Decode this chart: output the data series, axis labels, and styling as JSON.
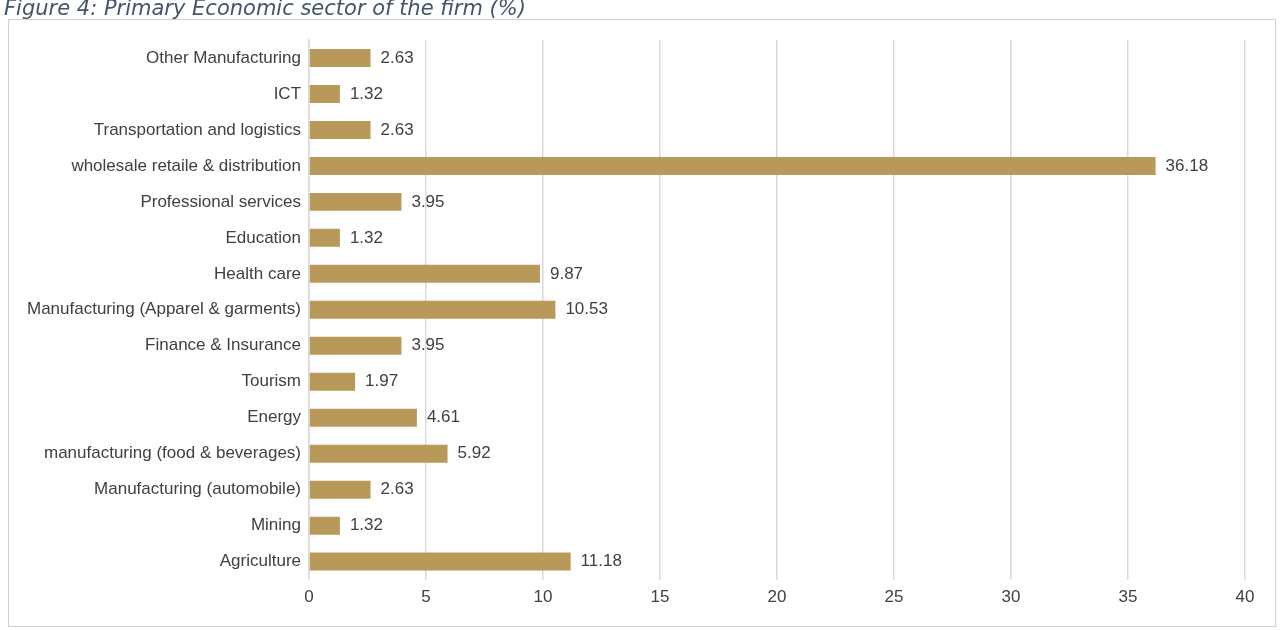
{
  "chart_data": {
    "type": "bar",
    "orientation": "horizontal",
    "title": "Figure 4: Primary Economic sector of the firm (%)",
    "categories": [
      "Other Manufacturing",
      "ICT",
      "Transportation and logistics",
      "wholesale retaile & distribution",
      "Professional services",
      "Education",
      "Health care",
      "Manufacturing (Apparel & garments)",
      "Finance & Insurance",
      "Tourism",
      "Energy",
      "manufacturing (food & beverages)",
      "Manufacturing (automobile)",
      "Mining",
      "Agriculture"
    ],
    "values": [
      2.63,
      1.32,
      2.63,
      36.18,
      3.95,
      1.32,
      9.87,
      10.53,
      3.95,
      1.97,
      4.61,
      5.92,
      2.63,
      1.32,
      11.18
    ],
    "color": "#b8995a",
    "xlim": [
      0,
      40
    ],
    "xticks": [
      0,
      5,
      10,
      15,
      20,
      25,
      30,
      35,
      40
    ],
    "grid": "x",
    "data_labels": true,
    "legend": false
  }
}
